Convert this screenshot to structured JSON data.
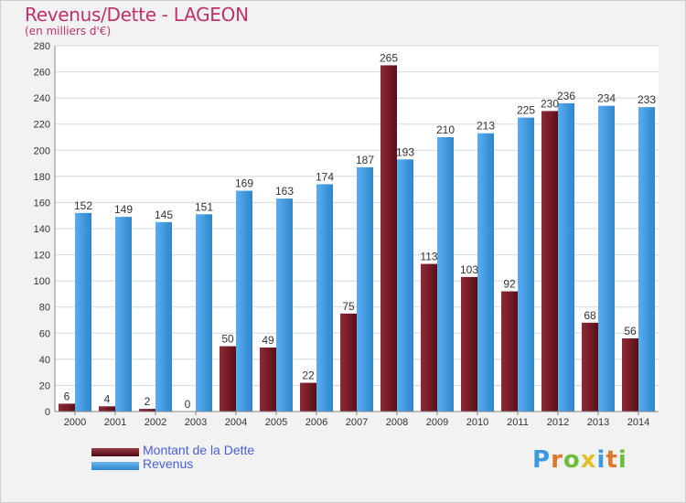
{
  "title": "Revenus/Dette - LAGEON",
  "subtitle": "(en milliers d'€)",
  "logo": "Proxiti",
  "colors": {
    "dette": "#7a1f2b",
    "revenus": "#3f98dc",
    "title": "#c0306a",
    "legend_text": "#4a60d8"
  },
  "legend": {
    "dette_label": "Montant de la Dette",
    "revenus_label": "Revenus"
  },
  "chart_data": {
    "type": "bar",
    "title": "Revenus/Dette - LAGEON",
    "subtitle": "(en milliers d'€)",
    "categories": [
      "2000",
      "2001",
      "2002",
      "2003",
      "2004",
      "2005",
      "2006",
      "2007",
      "2008",
      "2009",
      "2010",
      "2011",
      "2012",
      "2013",
      "2014"
    ],
    "series": [
      {
        "name": "Montant de la Dette",
        "values": [
          6,
          4,
          2,
          0,
          50,
          49,
          22,
          75,
          265,
          113,
          103,
          92,
          230,
          68,
          56
        ]
      },
      {
        "name": "Revenus",
        "values": [
          152,
          149,
          145,
          151,
          169,
          163,
          174,
          187,
          193,
          210,
          213,
          225,
          236,
          234,
          233
        ]
      }
    ],
    "ylim": [
      0,
      280
    ],
    "yticks": [
      0,
      20,
      40,
      60,
      80,
      100,
      120,
      140,
      160,
      180,
      200,
      220,
      240,
      260,
      280
    ],
    "grid": true,
    "legend_position": "bottom-left"
  }
}
